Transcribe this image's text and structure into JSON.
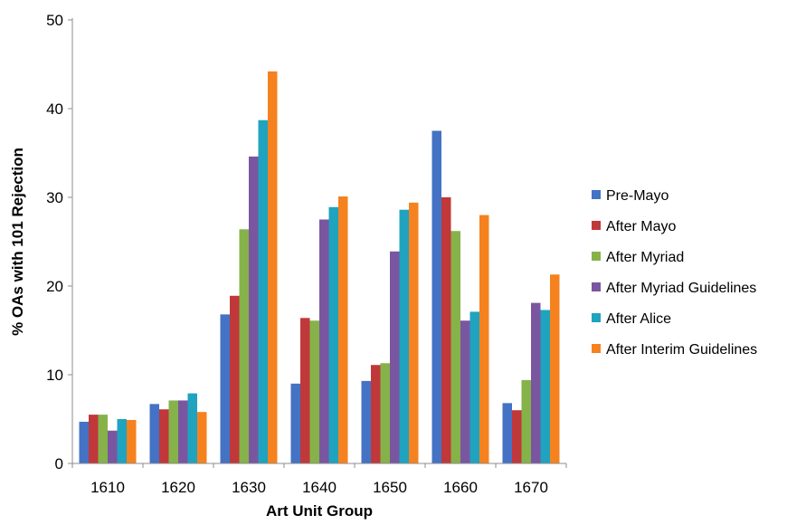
{
  "chart_data": {
    "type": "bar",
    "title": "",
    "xlabel": "Art Unit Group",
    "ylabel": "% OAs with 101 Rejection",
    "ylim": [
      0,
      50
    ],
    "yticks": [
      "0",
      "10",
      "20",
      "30",
      "40",
      "50"
    ],
    "categories": [
      "1610",
      "1620",
      "1630",
      "1640",
      "1650",
      "1660",
      "1670"
    ],
    "grid": false,
    "legend_position": "right",
    "series": [
      {
        "name": "Pre-Mayo",
        "color": "#4472C4",
        "values": [
          4.7,
          6.7,
          16.8,
          9.0,
          9.3,
          37.5,
          6.8
        ]
      },
      {
        "name": "After Mayo",
        "color": "#C0383A",
        "values": [
          5.5,
          6.1,
          18.9,
          16.4,
          11.1,
          30.0,
          6.0
        ]
      },
      {
        "name": "After Myriad",
        "color": "#86B24A",
        "values": [
          5.5,
          7.1,
          26.4,
          16.1,
          11.3,
          26.2,
          9.4
        ]
      },
      {
        "name": "After Myriad Guidelines",
        "color": "#7A56A0",
        "values": [
          3.7,
          7.1,
          34.6,
          27.5,
          23.9,
          16.1,
          18.1
        ]
      },
      {
        "name": "After Alice",
        "color": "#1FA3BF",
        "values": [
          5.0,
          7.9,
          38.7,
          28.9,
          28.6,
          17.1,
          17.3
        ]
      },
      {
        "name": "After Interim Guidelines",
        "color": "#F5821F",
        "values": [
          4.9,
          5.8,
          44.2,
          30.1,
          29.4,
          28.0,
          21.3
        ]
      }
    ]
  }
}
